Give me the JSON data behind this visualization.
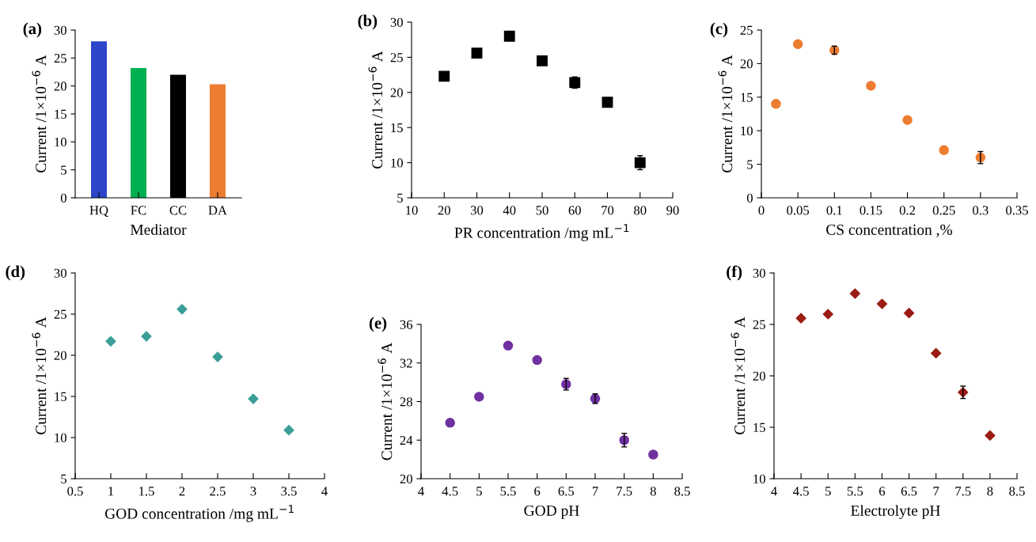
{
  "chart_data": [
    {
      "type": "bar",
      "title": "(a)",
      "xlabel": "Mediator",
      "ylabel": "Current /1×10$^{−6}$ A",
      "categories": [
        "HQ",
        "FC",
        "CC",
        "DA"
      ],
      "values": [
        28,
        23.2,
        22,
        20.3
      ],
      "colors": [
        "#2b44c8",
        "#00b050",
        "#000000",
        "#ed7d31"
      ],
      "ylim": [
        0,
        30
      ],
      "yticks": [
        0,
        5,
        10,
        15,
        20,
        25,
        30
      ],
      "grid": false,
      "legend": false
    },
    {
      "type": "scatter",
      "title": "(b)",
      "xlabel": "PR concentration /mg mL$^{−1}$",
      "ylabel": "Current /1×10$^{−6}$ A",
      "x": [
        20,
        30,
        40,
        50,
        60,
        70,
        80
      ],
      "series": [
        {
          "color": "#000000",
          "values": [
            22.3,
            25.6,
            28.0,
            24.5,
            21.4,
            18.6,
            10.0
          ],
          "errors": [
            null,
            null,
            null,
            null,
            0.8,
            0.4,
            1.0
          ]
        }
      ],
      "marker": "square",
      "xlim": [
        10,
        90
      ],
      "xticks": [
        10,
        20,
        30,
        40,
        50,
        60,
        70,
        80,
        90
      ],
      "ylim": [
        5,
        30
      ],
      "yticks": [
        5,
        10,
        15,
        20,
        25,
        30
      ],
      "grid": false,
      "legend": false
    },
    {
      "type": "scatter",
      "title": "(c)",
      "xlabel": "CS concentration ,%",
      "ylabel": "Current /1×10$^{−6}$ A",
      "x": [
        0.02,
        0.05,
        0.1,
        0.15,
        0.2,
        0.25,
        0.3
      ],
      "series": [
        {
          "color": "#ed7d31",
          "values": [
            14.0,
            22.9,
            22.0,
            16.7,
            11.6,
            7.1,
            6.0
          ],
          "errors": [
            null,
            null,
            0.6,
            null,
            null,
            null,
            0.9
          ]
        }
      ],
      "marker": "circle",
      "xlim": [
        0,
        0.35
      ],
      "xticks": [
        0,
        0.05,
        0.1,
        0.15,
        0.2,
        0.25,
        0.3,
        0.35
      ],
      "ylim": [
        0,
        25
      ],
      "yticks": [
        0,
        5,
        10,
        15,
        20,
        25
      ],
      "grid": false,
      "legend": false
    },
    {
      "type": "scatter",
      "title": "(d)",
      "xlabel": "GOD concentration /mg mL$^{−1}$",
      "ylabel": "Current /1×10$^{−6}$ A",
      "x": [
        1,
        1.5,
        2,
        2.5,
        3,
        3.5
      ],
      "series": [
        {
          "color": "#3a9f96",
          "values": [
            21.7,
            22.3,
            25.6,
            19.8,
            14.7,
            10.9
          ]
        }
      ],
      "marker": "diamond",
      "xlim": [
        0.5,
        4
      ],
      "xticks": [
        0.5,
        1,
        1.5,
        2,
        2.5,
        3,
        3.5,
        4
      ],
      "ylim": [
        5,
        30
      ],
      "yticks": [
        5,
        10,
        15,
        20,
        25,
        30
      ],
      "grid": false,
      "legend": false
    },
    {
      "type": "scatter",
      "title": "(e)",
      "xlabel": "GOD pH",
      "ylabel": "Current /1×10$^{−6}$ A",
      "x": [
        4.5,
        5,
        5.5,
        6,
        6.5,
        7,
        7.5,
        8
      ],
      "series": [
        {
          "color": "#7030a0",
          "values": [
            25.8,
            28.5,
            33.8,
            32.3,
            29.8,
            28.3,
            24.0,
            22.5
          ],
          "errors": [
            null,
            null,
            null,
            null,
            0.6,
            0.5,
            0.7,
            null
          ]
        }
      ],
      "marker": "circle",
      "xlim": [
        4,
        8.5
      ],
      "xticks": [
        4,
        4.5,
        5,
        5.5,
        6,
        6.5,
        7,
        7.5,
        8,
        8.5
      ],
      "ylim": [
        20,
        36
      ],
      "yticks": [
        20,
        24,
        28,
        32,
        36
      ],
      "grid": false,
      "legend": false
    },
    {
      "type": "scatter",
      "title": "(f)",
      "xlabel": "Electrolyte pH",
      "ylabel": "Current /1×10$^{−6}$ A",
      "x": [
        4.5,
        5,
        5.5,
        6,
        6.5,
        7,
        7.5,
        8
      ],
      "series": [
        {
          "color": "#9b1c14",
          "values": [
            25.6,
            26.0,
            28.0,
            27.0,
            26.1,
            22.2,
            18.4,
            14.2
          ],
          "errors": [
            null,
            null,
            null,
            null,
            null,
            null,
            0.6,
            null
          ]
        }
      ],
      "marker": "diamond",
      "xlim": [
        4,
        8.5
      ],
      "xticks": [
        4,
        4.5,
        5,
        5.5,
        6,
        6.5,
        7,
        7.5,
        8,
        8.5
      ],
      "ylim": [
        10,
        30
      ],
      "yticks": [
        10,
        15,
        20,
        25,
        30
      ],
      "grid": false,
      "legend": false
    }
  ]
}
